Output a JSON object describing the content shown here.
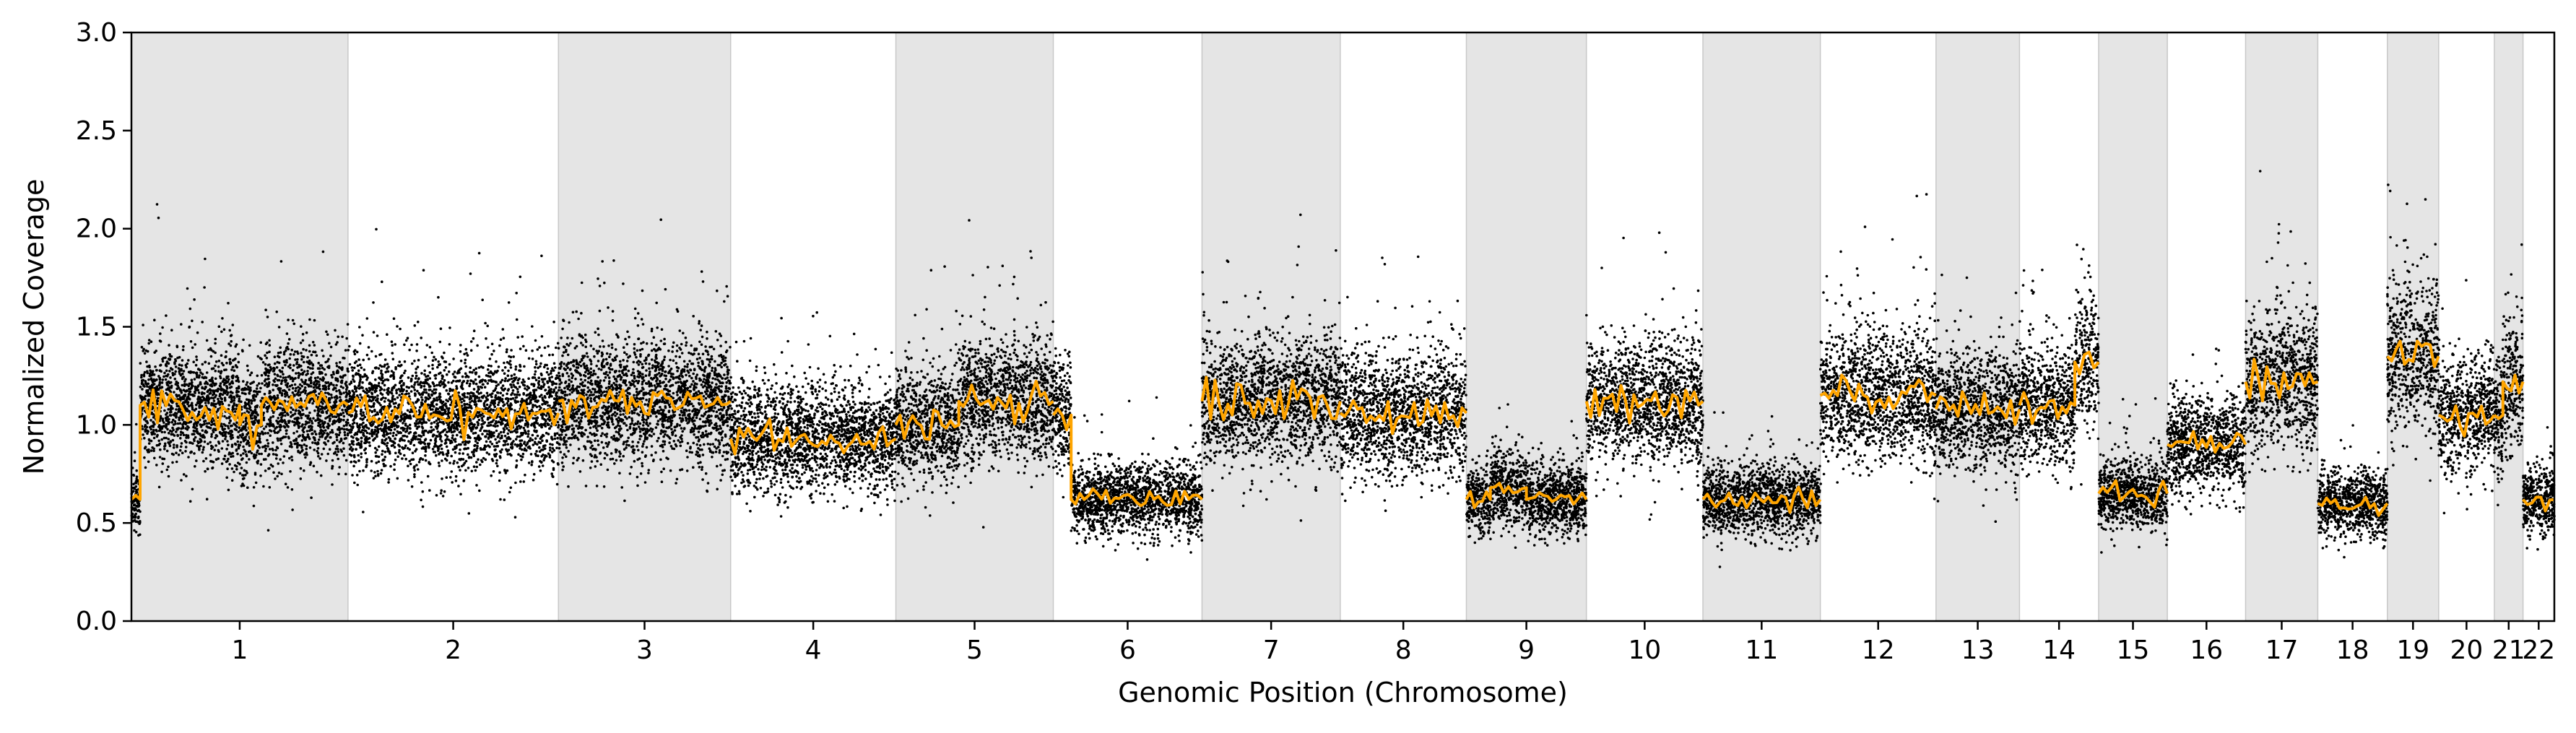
{
  "chart_data": {
    "type": "scatter",
    "title": "",
    "xlabel": "Genomic Position (Chromosome)",
    "ylabel": "Normalized Coverage",
    "ylim": [
      0,
      3.0
    ],
    "yticks": [
      "0.0",
      "0.5",
      "1.0",
      "1.5",
      "2.0",
      "2.5",
      "3.0"
    ],
    "grid": false,
    "legend": "none",
    "colors": {
      "points": "#000000",
      "segments": "#FFA500",
      "shade": "#e5e5e5",
      "shade_edge": "#c8c8c8"
    },
    "chromosomes": [
      {
        "label": "1",
        "length": 249,
        "shaded": true,
        "median": 1.08
      },
      {
        "label": "2",
        "length": 242,
        "shaded": false,
        "median": 1.06
      },
      {
        "label": "3",
        "length": 198,
        "shaded": true,
        "median": 1.1
      },
      {
        "label": "4",
        "length": 190,
        "shaded": false,
        "median": 0.93
      },
      {
        "label": "5",
        "length": 181,
        "shaded": true,
        "median": 1.08
      },
      {
        "label": "6",
        "length": 171,
        "shaded": false,
        "median": 0.62
      },
      {
        "label": "7",
        "length": 159,
        "shaded": true,
        "median": 1.12
      },
      {
        "label": "8",
        "length": 145,
        "shaded": false,
        "median": 1.06
      },
      {
        "label": "9",
        "length": 138,
        "shaded": true,
        "median": 0.65
      },
      {
        "label": "10",
        "length": 134,
        "shaded": false,
        "median": 1.12
      },
      {
        "label": "11",
        "length": 135,
        "shaded": true,
        "median": 0.62
      },
      {
        "label": "12",
        "length": 133,
        "shaded": false,
        "median": 1.14
      },
      {
        "label": "13",
        "length": 96,
        "shaded": true,
        "median": 1.08
      },
      {
        "label": "14",
        "length": 91,
        "shaded": false,
        "median": 1.1
      },
      {
        "label": "15",
        "length": 79,
        "shaded": true,
        "median": 0.65
      },
      {
        "label": "16",
        "length": 90,
        "shaded": false,
        "median": 0.9
      },
      {
        "label": "17",
        "length": 83,
        "shaded": true,
        "median": 1.22
      },
      {
        "label": "18",
        "length": 80,
        "shaded": false,
        "median": 0.6
      },
      {
        "label": "19",
        "length": 59,
        "shaded": true,
        "median": 1.35
      },
      {
        "label": "20",
        "length": 64,
        "shaded": false,
        "median": 1.05
      },
      {
        "label": "21",
        "length": 33,
        "shaded": true,
        "median": 1.05
      },
      {
        "label": "22",
        "length": 36,
        "shaded": false,
        "median": 0.62
      }
    ],
    "segments": [
      {
        "chrom": "1",
        "start": 0.0,
        "end": 0.04,
        "value": 0.62
      },
      {
        "chrom": "1",
        "start": 0.04,
        "end": 0.5,
        "value": 1.1
      },
      {
        "chrom": "1",
        "start": 0.5,
        "end": 0.6,
        "value": 1.0
      },
      {
        "chrom": "1",
        "start": 0.6,
        "end": 1.0,
        "value": 1.1
      },
      {
        "chrom": "2",
        "start": 0.0,
        "end": 1.0,
        "value": 1.06
      },
      {
        "chrom": "3",
        "start": 0.0,
        "end": 1.0,
        "value": 1.12
      },
      {
        "chrom": "4",
        "start": 0.0,
        "end": 1.0,
        "value": 0.93
      },
      {
        "chrom": "5",
        "start": 0.0,
        "end": 0.4,
        "value": 1.0
      },
      {
        "chrom": "5",
        "start": 0.4,
        "end": 1.0,
        "value": 1.12
      },
      {
        "chrom": "6",
        "start": 0.0,
        "end": 0.12,
        "value": 1.05
      },
      {
        "chrom": "6",
        "start": 0.12,
        "end": 1.0,
        "value": 0.62
      },
      {
        "chrom": "7",
        "start": 0.0,
        "end": 1.0,
        "value": 1.12
      },
      {
        "chrom": "8",
        "start": 0.0,
        "end": 1.0,
        "value": 1.06
      },
      {
        "chrom": "9",
        "start": 0.0,
        "end": 0.2,
        "value": 0.62
      },
      {
        "chrom": "9",
        "start": 0.2,
        "end": 0.5,
        "value": 0.68
      },
      {
        "chrom": "9",
        "start": 0.5,
        "end": 1.0,
        "value": 0.62
      },
      {
        "chrom": "10",
        "start": 0.0,
        "end": 1.0,
        "value": 1.12
      },
      {
        "chrom": "11",
        "start": 0.0,
        "end": 1.0,
        "value": 0.62
      },
      {
        "chrom": "12",
        "start": 0.0,
        "end": 1.0,
        "value": 1.15
      },
      {
        "chrom": "13",
        "start": 0.0,
        "end": 1.0,
        "value": 1.08
      },
      {
        "chrom": "14",
        "start": 0.0,
        "end": 0.7,
        "value": 1.1
      },
      {
        "chrom": "14",
        "start": 0.7,
        "end": 1.0,
        "value": 1.32
      },
      {
        "chrom": "15",
        "start": 0.0,
        "end": 1.0,
        "value": 0.65
      },
      {
        "chrom": "16",
        "start": 0.0,
        "end": 1.0,
        "value": 0.9
      },
      {
        "chrom": "17",
        "start": 0.0,
        "end": 1.0,
        "value": 1.22
      },
      {
        "chrom": "18",
        "start": 0.0,
        "end": 1.0,
        "value": 0.6
      },
      {
        "chrom": "19",
        "start": 0.0,
        "end": 1.0,
        "value": 1.35
      },
      {
        "chrom": "20",
        "start": 0.0,
        "end": 1.0,
        "value": 1.05
      },
      {
        "chrom": "21",
        "start": 0.0,
        "end": 0.3,
        "value": 1.05
      },
      {
        "chrom": "21",
        "start": 0.3,
        "end": 1.0,
        "value": 1.22
      },
      {
        "chrom": "22",
        "start": 0.0,
        "end": 1.0,
        "value": 0.62
      }
    ],
    "points_per_mb": 11,
    "noise_sd": 0.14
  }
}
